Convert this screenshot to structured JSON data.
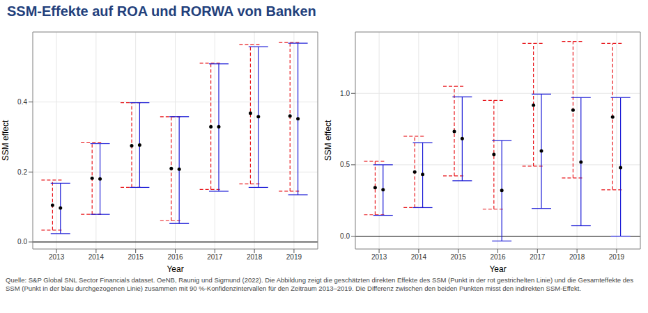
{
  "title": "SSM-Effekte auf ROA und RORWA von Banken",
  "note": "Quelle: S&P Global SNL Sector Financials dataset. OeNB, Raunig und Sigmund (2022). Die Abbildung zeigt die geschätzten direkten Effekte des SSM (Punkt in der rot gestrichelten Linie) und die Gesamteffekte des SSM (Punkt in der blau durchgezogenen Linie) zusammen mit 90 %-Konfidenzintervallen für den Zeitraum 2013–2019. Die Differenz zwischen den beiden Punkten misst den indirekten SSM-Effekt.",
  "chart_data": [
    {
      "type": "scatter",
      "x_label": "Year",
      "y_label": "SSM effect",
      "categories": [
        "2013",
        "2014",
        "2015",
        "2016",
        "2017",
        "2018",
        "2019"
      ],
      "ylim": [
        -0.02,
        0.6
      ],
      "yticks": [
        {
          "value": 0,
          "label": "0.0"
        },
        {
          "value": 0.2,
          "label": "0.2"
        },
        {
          "value": 0.4,
          "label": "0.4"
        }
      ],
      "grid": true,
      "hline": 0,
      "series": [
        {
          "color": "#e8161b",
          "line_style": "dashed",
          "marker": "circle",
          "values": [
            0.105,
            0.182,
            0.275,
            0.21,
            0.329,
            0.368,
            0.36
          ],
          "lower": [
            0.034,
            0.079,
            0.156,
            0.061,
            0.15,
            0.166,
            0.145
          ],
          "upper": [
            0.177,
            0.285,
            0.398,
            0.358,
            0.511,
            0.564,
            0.57
          ]
        },
        {
          "color": "#1a1ad6",
          "line_style": "solid",
          "marker": "circle",
          "values": [
            0.097,
            0.18,
            0.277,
            0.208,
            0.329,
            0.358,
            0.352
          ],
          "lower": [
            0.024,
            0.079,
            0.156,
            0.053,
            0.145,
            0.156,
            0.135
          ],
          "upper": [
            0.168,
            0.281,
            0.398,
            0.358,
            0.509,
            0.558,
            0.568
          ]
        }
      ]
    },
    {
      "type": "scatter",
      "x_label": "Year",
      "y_label": "SSM effect",
      "categories": [
        "2013",
        "2014",
        "2015",
        "2016",
        "2017",
        "2018",
        "2019"
      ],
      "ylim": [
        -0.09,
        1.43
      ],
      "yticks": [
        {
          "value": 0,
          "label": "0.0"
        },
        0.5,
        {
          "value": 1,
          "label": "1.0"
        }
      ],
      "grid": true,
      "hline": 0,
      "series": [
        {
          "color": "#e8161b",
          "line_style": "dashed",
          "marker": "circle",
          "values": [
            0.34,
            0.45,
            0.733,
            0.573,
            0.917,
            0.883,
            0.835
          ],
          "lower": [
            0.15,
            0.2,
            0.422,
            0.189,
            0.49,
            0.408,
            0.325
          ],
          "upper": [
            0.524,
            0.7,
            1.049,
            0.951,
            1.35,
            1.364,
            1.35
          ]
        },
        {
          "color": "#1a1ad6",
          "line_style": "solid",
          "marker": "circle",
          "values": [
            0.325,
            0.432,
            0.684,
            0.32,
            0.597,
            0.519,
            0.48
          ],
          "lower": [
            0.146,
            0.2,
            0.388,
            -0.034,
            0.194,
            0.073,
            0
          ],
          "upper": [
            0.5,
            0.655,
            0.976,
            0.67,
            0.995,
            0.971,
            0.971
          ]
        }
      ]
    }
  ]
}
